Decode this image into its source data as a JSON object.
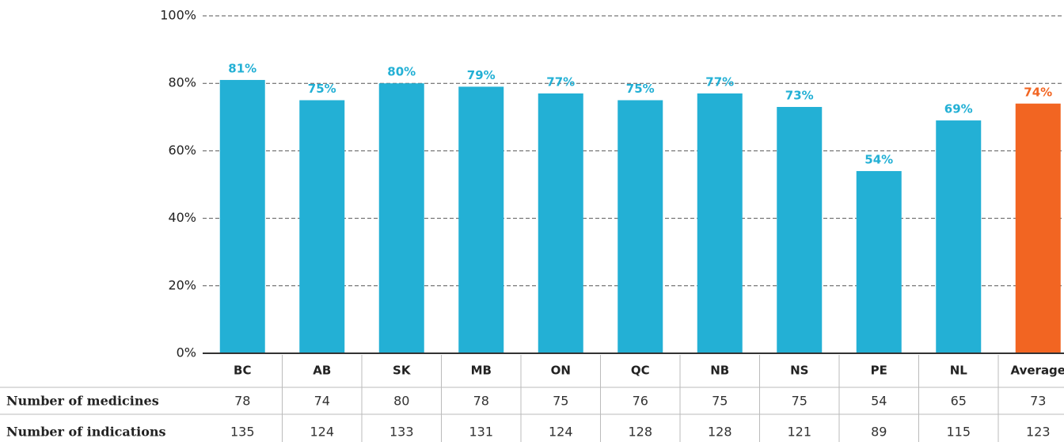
{
  "chart_data": {
    "type": "bar",
    "categories": [
      "BC",
      "AB",
      "SK",
      "MB",
      "ON",
      "QC",
      "NB",
      "NS",
      "PE",
      "NL",
      "Average"
    ],
    "values": [
      81,
      75,
      80,
      79,
      77,
      75,
      77,
      73,
      54,
      69,
      74
    ],
    "value_labels": [
      "81%",
      "75%",
      "80%",
      "79%",
      "77%",
      "75%",
      "77%",
      "73%",
      "54%",
      "69%",
      "74%"
    ],
    "colors": [
      "#23b0d5",
      "#23b0d5",
      "#23b0d5",
      "#23b0d5",
      "#23b0d5",
      "#23b0d5",
      "#23b0d5",
      "#23b0d5",
      "#23b0d5",
      "#23b0d5",
      "#f26522"
    ],
    "ylim": [
      0,
      100
    ],
    "yticks": [
      {
        "value": 0,
        "label": "0%"
      },
      {
        "value": 20,
        "label": "20%"
      },
      {
        "value": 40,
        "label": "40%"
      },
      {
        "value": 60,
        "label": "60%"
      },
      {
        "value": 80,
        "label": "80%"
      },
      {
        "value": 100,
        "label": "100%"
      }
    ],
    "grid": true
  },
  "table": {
    "rows": [
      {
        "label": "Number of medicines",
        "values": [
          78,
          74,
          80,
          78,
          75,
          76,
          75,
          75,
          54,
          65,
          73
        ]
      },
      {
        "label": "Number of indications",
        "values": [
          135,
          124,
          133,
          131,
          124,
          128,
          128,
          121,
          89,
          115,
          123
        ]
      }
    ]
  }
}
